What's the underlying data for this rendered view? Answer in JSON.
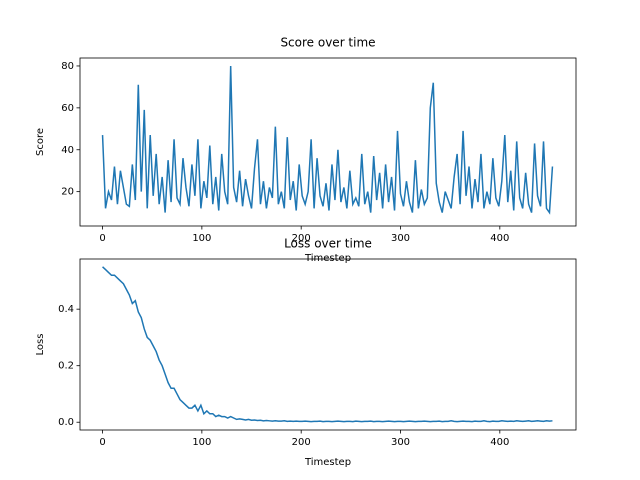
{
  "chart_data": [
    {
      "type": "line",
      "title": "Score over time",
      "x_label": "Timestep",
      "y_label": "Score",
      "color": "#1f77b4",
      "x": [
        0,
        3,
        6,
        9,
        12,
        15,
        18,
        21,
        24,
        27,
        30,
        33,
        36,
        39,
        42,
        45,
        48,
        51,
        54,
        57,
        60,
        63,
        66,
        69,
        72,
        75,
        78,
        81,
        84,
        87,
        90,
        93,
        96,
        99,
        102,
        105,
        108,
        111,
        114,
        117,
        120,
        123,
        126,
        129,
        132,
        135,
        138,
        141,
        144,
        147,
        150,
        153,
        156,
        159,
        162,
        165,
        168,
        171,
        174,
        177,
        180,
        183,
        186,
        189,
        192,
        195,
        198,
        201,
        204,
        207,
        210,
        213,
        216,
        219,
        222,
        225,
        228,
        231,
        234,
        237,
        240,
        243,
        246,
        249,
        252,
        255,
        258,
        261,
        264,
        267,
        270,
        273,
        276,
        279,
        282,
        285,
        288,
        291,
        294,
        297,
        300,
        303,
        306,
        309,
        312,
        315,
        318,
        321,
        324,
        327,
        330,
        333,
        336,
        339,
        342,
        345,
        348,
        351,
        354,
        357,
        360,
        363,
        366,
        369,
        372,
        375,
        378,
        381,
        384,
        387,
        390,
        393,
        396,
        399,
        402,
        405,
        408,
        411,
        414,
        417,
        420,
        423,
        426,
        429,
        432,
        435,
        438,
        441,
        444,
        447,
        450,
        453
      ],
      "values": [
        47,
        12,
        20,
        16,
        32,
        14,
        30,
        22,
        14,
        13,
        33,
        16,
        71,
        20,
        59,
        12,
        47,
        18,
        38,
        14,
        27,
        10,
        35,
        15,
        45,
        17,
        14,
        36,
        22,
        13,
        33,
        18,
        45,
        12,
        25,
        17,
        42,
        14,
        27,
        11,
        38,
        20,
        14,
        80,
        22,
        15,
        30,
        13,
        26,
        18,
        12,
        31,
        45,
        14,
        25,
        12,
        22,
        17,
        51,
        14,
        20,
        12,
        46,
        16,
        25,
        11,
        33,
        18,
        14,
        20,
        45,
        12,
        36,
        18,
        13,
        24,
        11,
        33,
        16,
        40,
        15,
        22,
        12,
        30,
        14,
        17,
        13,
        38,
        14,
        20,
        10,
        37,
        16,
        29,
        12,
        33,
        15,
        27,
        11,
        49,
        19,
        13,
        25,
        15,
        10,
        35,
        12,
        21,
        14,
        17,
        60,
        72,
        24,
        15,
        10,
        20,
        16,
        12,
        27,
        38,
        14,
        49,
        18,
        32,
        12,
        26,
        15,
        38,
        12,
        20,
        14,
        36,
        17,
        13,
        25,
        47,
        15,
        30,
        11,
        44,
        17,
        12,
        29,
        14,
        10,
        43,
        18,
        13,
        44,
        12,
        10,
        32
      ],
      "xlim": [
        -22.7,
        476.7
      ],
      "ylim": [
        3.6,
        83.8
      ],
      "xticks": [
        0,
        100,
        200,
        300,
        400
      ],
      "yticks": [
        20,
        40,
        60,
        80
      ]
    },
    {
      "type": "line",
      "title": "Loss over time",
      "x_label": "Timestep",
      "y_label": "Loss",
      "color": "#1f77b4",
      "x": [
        0,
        3,
        6,
        9,
        12,
        15,
        18,
        21,
        24,
        27,
        30,
        33,
        36,
        39,
        42,
        45,
        48,
        51,
        54,
        57,
        60,
        63,
        66,
        69,
        72,
        75,
        78,
        81,
        84,
        87,
        90,
        93,
        96,
        99,
        102,
        105,
        108,
        111,
        114,
        117,
        120,
        123,
        126,
        129,
        132,
        135,
        138,
        141,
        144,
        147,
        150,
        153,
        156,
        159,
        162,
        165,
        168,
        171,
        174,
        177,
        180,
        183,
        186,
        189,
        192,
        195,
        198,
        201,
        204,
        207,
        210,
        213,
        216,
        219,
        222,
        225,
        228,
        231,
        234,
        237,
        240,
        243,
        246,
        249,
        252,
        255,
        258,
        261,
        264,
        267,
        270,
        273,
        276,
        279,
        282,
        285,
        288,
        291,
        294,
        297,
        300,
        303,
        306,
        309,
        312,
        315,
        318,
        321,
        324,
        327,
        330,
        333,
        336,
        339,
        342,
        345,
        348,
        351,
        354,
        357,
        360,
        363,
        366,
        369,
        372,
        375,
        378,
        381,
        384,
        387,
        390,
        393,
        396,
        399,
        402,
        405,
        408,
        411,
        414,
        417,
        420,
        423,
        426,
        429,
        432,
        435,
        438,
        441,
        444,
        447,
        450,
        453
      ],
      "values": [
        0.55,
        0.54,
        0.53,
        0.52,
        0.52,
        0.51,
        0.5,
        0.49,
        0.47,
        0.45,
        0.42,
        0.43,
        0.39,
        0.37,
        0.33,
        0.3,
        0.29,
        0.27,
        0.25,
        0.22,
        0.2,
        0.17,
        0.14,
        0.12,
        0.12,
        0.1,
        0.08,
        0.07,
        0.06,
        0.05,
        0.05,
        0.06,
        0.04,
        0.06,
        0.03,
        0.04,
        0.03,
        0.03,
        0.02,
        0.025,
        0.02,
        0.02,
        0.015,
        0.02,
        0.015,
        0.01,
        0.012,
        0.01,
        0.008,
        0.01,
        0.007,
        0.008,
        0.006,
        0.007,
        0.005,
        0.006,
        0.005,
        0.004,
        0.005,
        0.004,
        0.004,
        0.005,
        0.003,
        0.004,
        0.003,
        0.004,
        0.003,
        0.003,
        0.004,
        0.003,
        0.002,
        0.003,
        0.003,
        0.004,
        0.002,
        0.003,
        0.003,
        0.002,
        0.003,
        0.004,
        0.003,
        0.002,
        0.003,
        0.003,
        0.002,
        0.004,
        0.003,
        0.002,
        0.003,
        0.003,
        0.004,
        0.002,
        0.003,
        0.003,
        0.002,
        0.003,
        0.004,
        0.003,
        0.002,
        0.003,
        0.003,
        0.002,
        0.003,
        0.004,
        0.003,
        0.002,
        0.003,
        0.003,
        0.004,
        0.003,
        0.002,
        0.003,
        0.003,
        0.004,
        0.002,
        0.003,
        0.003,
        0.005,
        0.003,
        0.002,
        0.003,
        0.004,
        0.003,
        0.003,
        0.002,
        0.004,
        0.003,
        0.003,
        0.005,
        0.003,
        0.002,
        0.004,
        0.003,
        0.003,
        0.005,
        0.004,
        0.003,
        0.004,
        0.003,
        0.005,
        0.004,
        0.003,
        0.004,
        0.005,
        0.003,
        0.004,
        0.005,
        0.004,
        0.003,
        0.005,
        0.004,
        0.005
      ],
      "xlim": [
        -22.7,
        476.7
      ],
      "ylim": [
        -0.0275,
        0.5775
      ],
      "xticks": [
        0,
        100,
        200,
        300,
        400
      ],
      "yticks": [
        {
          "value": 0,
          "label": "0.0"
        },
        {
          "value": 0.2,
          "label": "0.2"
        },
        {
          "value": 0.4,
          "label": "0.4"
        }
      ]
    }
  ]
}
